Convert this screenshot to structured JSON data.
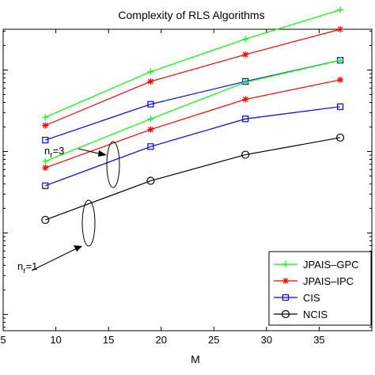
{
  "chart_data": {
    "type": "line",
    "title": "Complexity of RLS Algorithms",
    "xlabel": "M",
    "ylabel": "",
    "x_scale": "linear",
    "y_scale": "log",
    "xlim": [
      5,
      40
    ],
    "ylim_log10": [
      3.8,
      7.5
    ],
    "x_ticks": [
      "5",
      "10",
      "15",
      "20",
      "25",
      "30",
      "35"
    ],
    "x": [
      9,
      19,
      28,
      37
    ],
    "legend_position": "bottom-right",
    "grid": false,
    "series": [
      {
        "name": "JPAIS–GPC",
        "group": "nr=3",
        "marker": "plus",
        "color": "#00ff00",
        "values_log10": [
          6.42,
          6.98,
          7.38,
          7.74
        ]
      },
      {
        "name": "JPAIS–IPC",
        "group": "nr=3",
        "marker": "star",
        "color": "#ff0000",
        "values_log10": [
          6.32,
          6.86,
          7.19,
          7.5
        ]
      },
      {
        "name": "CIS",
        "group": "nr=3",
        "marker": "square",
        "color": "#0000ff",
        "values_log10": [
          6.14,
          6.58,
          6.86,
          7.12
        ]
      },
      {
        "name": "JPAIS–GPC",
        "group": "nr=1",
        "marker": "plus",
        "color": "#00ff00",
        "values_log10": [
          5.88,
          6.4,
          6.85,
          7.12
        ]
      },
      {
        "name": "JPAIS–IPC",
        "group": "nr=1",
        "marker": "star",
        "color": "#ff0000",
        "values_log10": [
          5.8,
          6.27,
          6.64,
          6.88
        ]
      },
      {
        "name": "CIS",
        "group": "nr=1",
        "marker": "square",
        "color": "#0000ff",
        "values_log10": [
          5.58,
          6.06,
          6.4,
          6.55
        ]
      },
      {
        "name": "NCIS",
        "group": "both",
        "marker": "circle",
        "color": "#000000",
        "values_log10": [
          5.16,
          5.64,
          5.96,
          6.17
        ]
      }
    ],
    "legend": [
      {
        "label": "JPAIS–GPC",
        "marker": "plus",
        "color": "#00ff00"
      },
      {
        "label": "JPAIS–IPC",
        "marker": "star",
        "color": "#ff0000"
      },
      {
        "label": "CIS",
        "marker": "square",
        "color": "#0000ff"
      },
      {
        "label": "NCIS",
        "marker": "circle",
        "color": "#000000"
      }
    ],
    "annotations": [
      {
        "text": "n",
        "sub": "r",
        "suffix": "=3"
      },
      {
        "text": "n",
        "sub": "r",
        "suffix": "=1"
      }
    ]
  }
}
